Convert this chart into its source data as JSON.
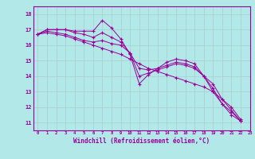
{
  "xlabel": "Windchill (Refroidissement éolien,°C)",
  "ylabel": "",
  "xlim": [
    -0.5,
    22.5
  ],
  "ylim": [
    10.5,
    18.5
  ],
  "yticks": [
    11,
    12,
    13,
    14,
    15,
    16,
    17,
    18
  ],
  "xticks": [
    0,
    1,
    2,
    3,
    4,
    5,
    6,
    7,
    8,
    9,
    10,
    11,
    12,
    13,
    14,
    15,
    16,
    17,
    18,
    19,
    20,
    21,
    22,
    23
  ],
  "background_color": "#b2e8e8",
  "line_color": "#990099",
  "grid_color": "#c8e8e8",
  "lines": [
    [
      16.7,
      17.0,
      17.0,
      17.0,
      16.9,
      16.9,
      16.9,
      17.6,
      17.1,
      16.4,
      15.4,
      13.5,
      14.1,
      14.5,
      14.9,
      15.1,
      15.0,
      14.8,
      14.0,
      13.0,
      12.2,
      11.5,
      11.1
    ],
    [
      16.7,
      17.0,
      17.0,
      17.0,
      16.8,
      16.7,
      16.5,
      16.8,
      16.5,
      16.2,
      15.5,
      14.0,
      14.2,
      14.4,
      14.6,
      14.8,
      14.7,
      14.5,
      14.0,
      13.2,
      12.2,
      11.7,
      11.1
    ],
    [
      16.7,
      16.9,
      16.8,
      16.7,
      16.5,
      16.3,
      16.2,
      16.3,
      16.1,
      16.0,
      15.5,
      14.5,
      14.4,
      14.5,
      14.7,
      14.9,
      14.8,
      14.6,
      14.0,
      13.5,
      12.5,
      12.0,
      11.2
    ],
    [
      16.7,
      16.8,
      16.7,
      16.6,
      16.4,
      16.2,
      16.0,
      15.8,
      15.6,
      15.4,
      15.1,
      14.8,
      14.5,
      14.3,
      14.1,
      13.9,
      13.7,
      13.5,
      13.3,
      13.0,
      12.5,
      11.8,
      11.1
    ]
  ]
}
